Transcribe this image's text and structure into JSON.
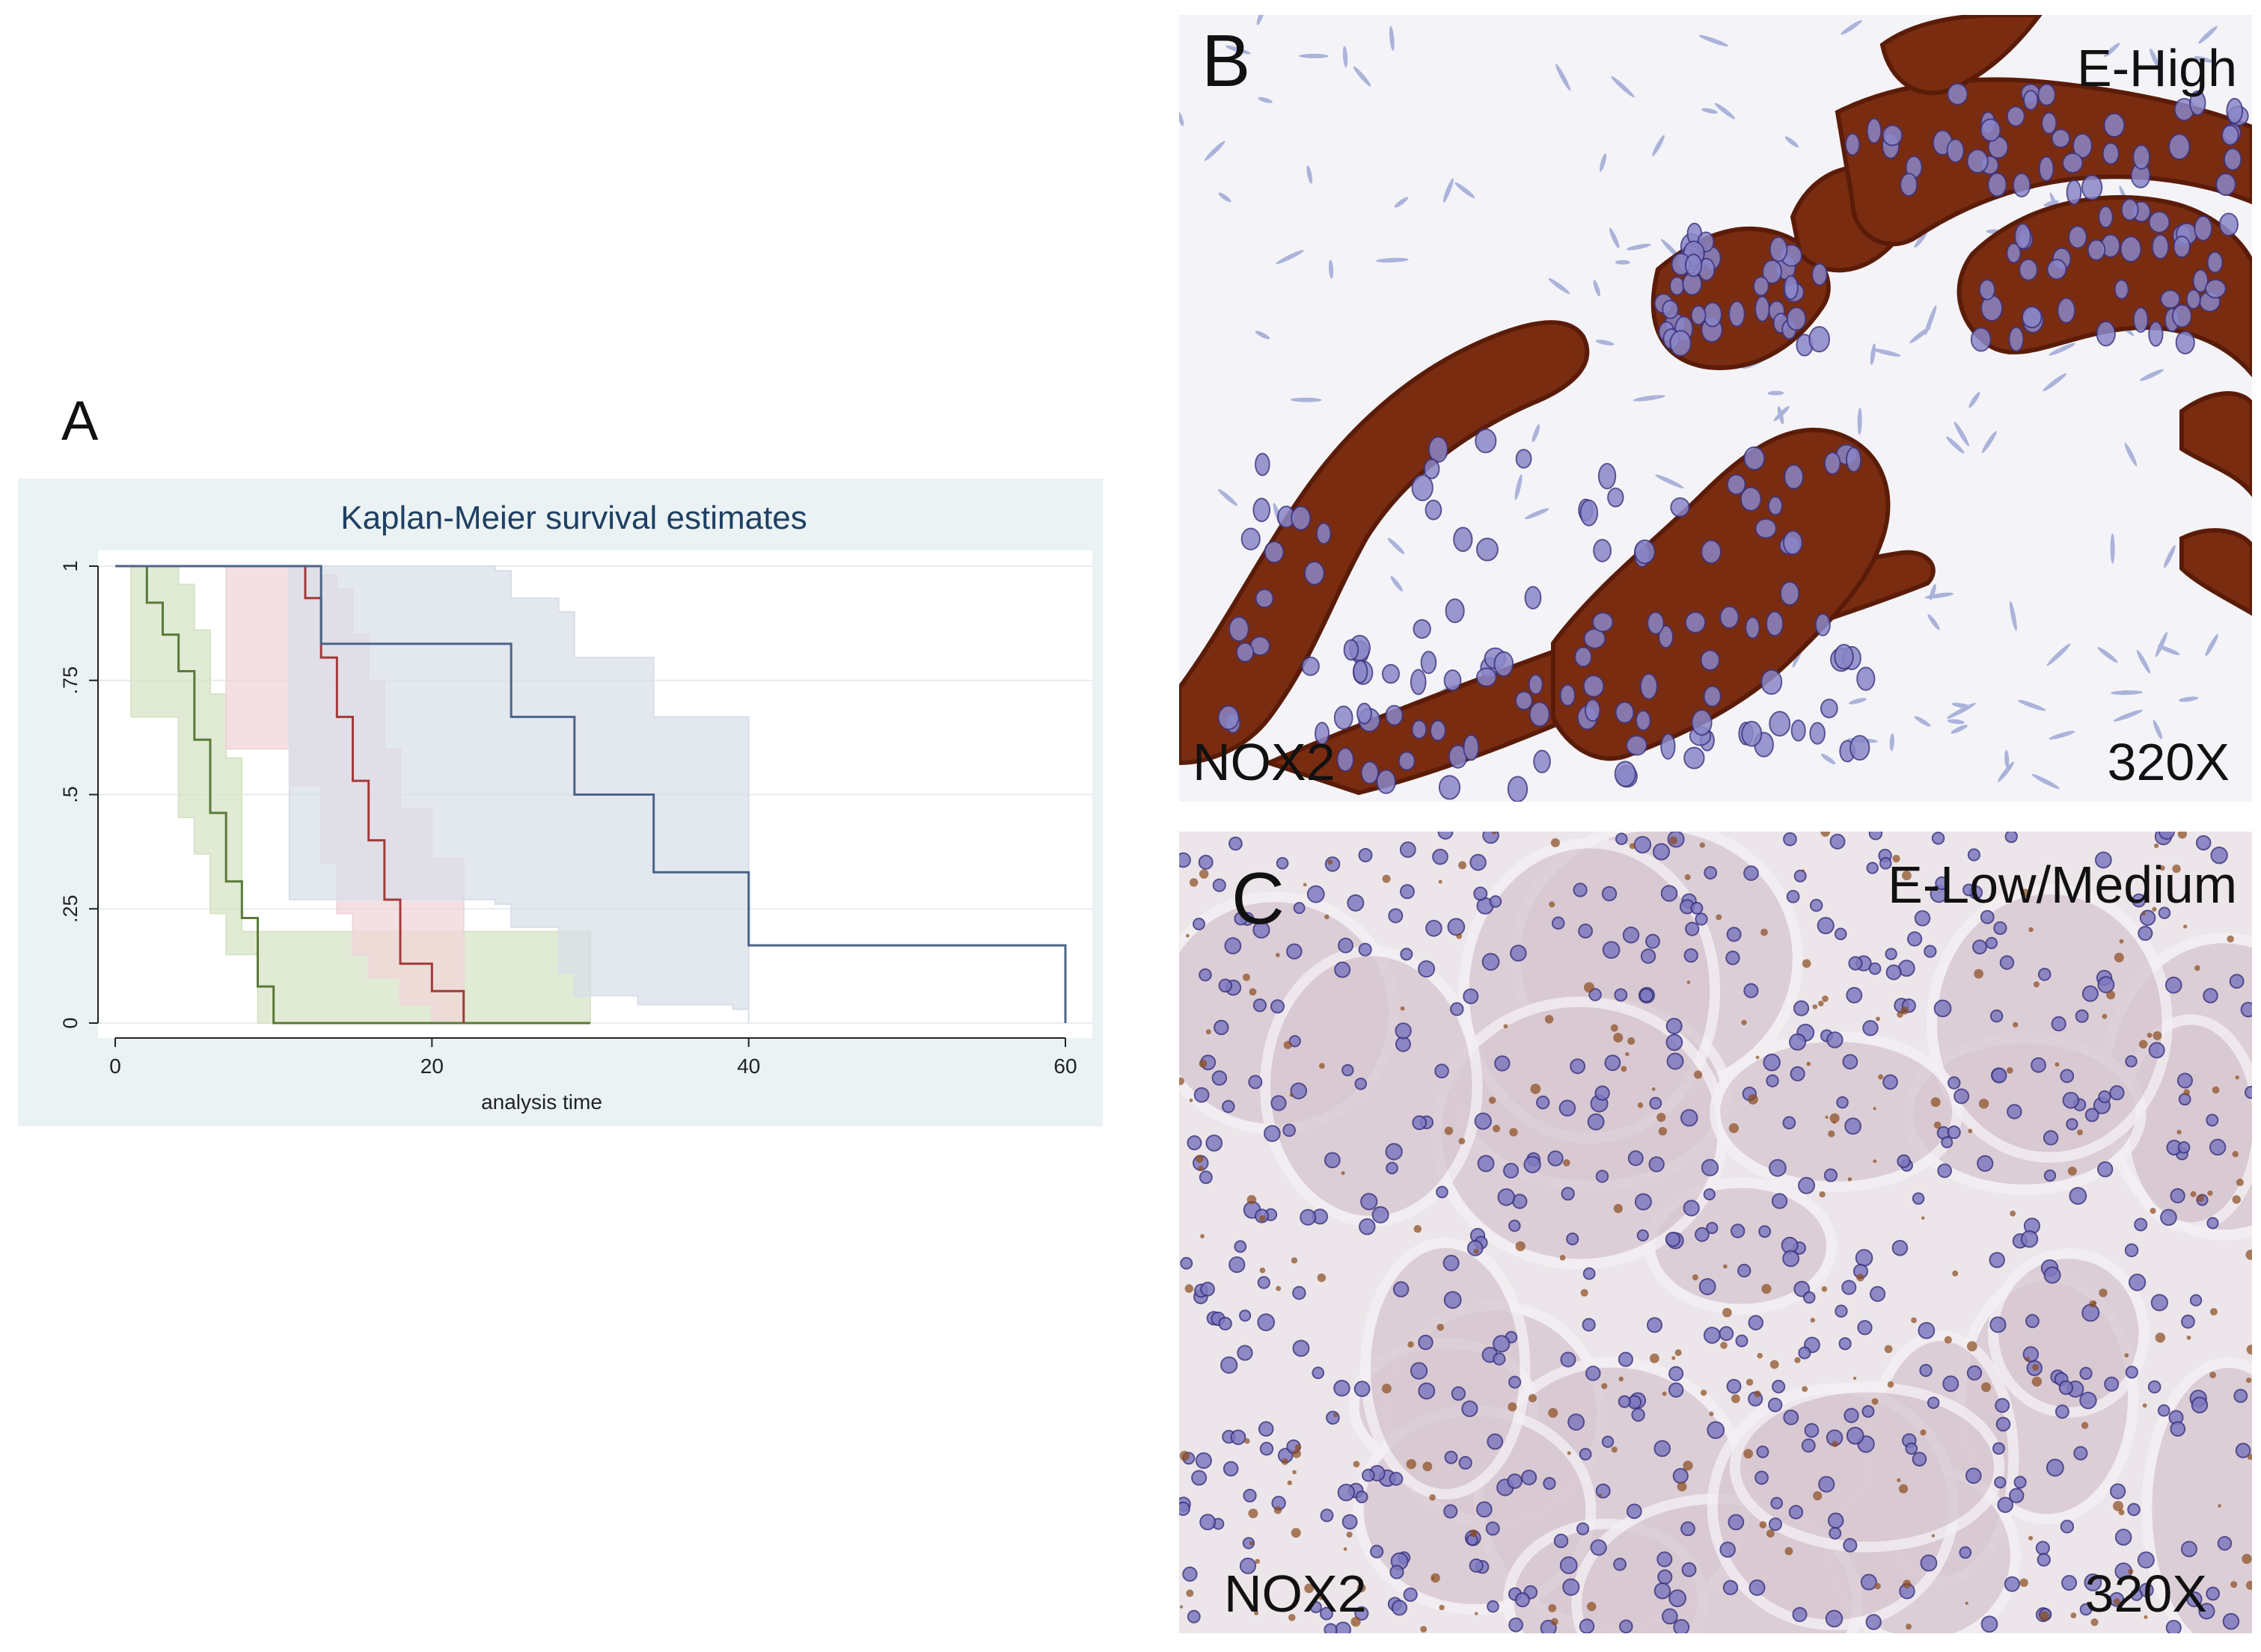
{
  "panels": {
    "a": {
      "letter": "A"
    },
    "b": {
      "letter": "B",
      "group": "E-High",
      "stain": "NOX2",
      "magnification": "320X"
    },
    "c": {
      "letter": "C",
      "group": "E-Low/Medium",
      "stain": "NOX2",
      "magnification": "320X"
    }
  },
  "chart_data": {
    "type": "line",
    "title": "Kaplan-Meier survival estimates",
    "xlabel": "analysis time",
    "ylabel": "",
    "xlim": [
      0,
      60
    ],
    "ylim": [
      0,
      1
    ],
    "xticks": [
      0,
      20,
      40,
      60
    ],
    "yticks": [
      0,
      0.25,
      0.5,
      0.75,
      1
    ],
    "ytick_labels": [
      "0",
      ".25",
      ".5",
      ".75",
      "1"
    ],
    "grid": true,
    "series": [
      {
        "color": "#5b7a3a",
        "ci_color": "#d7e3c6",
        "steps": [
          [
            0,
            1
          ],
          [
            1,
            1
          ],
          [
            2,
            0.92
          ],
          [
            3,
            0.85
          ],
          [
            4,
            0.77
          ],
          [
            5,
            0.62
          ],
          [
            6,
            0.46
          ],
          [
            7,
            0.31
          ],
          [
            8,
            0.23
          ],
          [
            9,
            0.08
          ],
          [
            10,
            0.0
          ],
          [
            30,
            0.0
          ]
        ],
        "ci_upper": [
          [
            0,
            1
          ],
          [
            1,
            1
          ],
          [
            2,
            1
          ],
          [
            3,
            1
          ],
          [
            4,
            0.96
          ],
          [
            5,
            0.86
          ],
          [
            6,
            0.72
          ],
          [
            7,
            0.58
          ],
          [
            8,
            0.2
          ],
          [
            30,
            0.2
          ]
        ],
        "ci_lower": [
          [
            0,
            1
          ],
          [
            1,
            0.67
          ],
          [
            4,
            0.45
          ],
          [
            5,
            0.37
          ],
          [
            6,
            0.24
          ],
          [
            7,
            0.15
          ],
          [
            9,
            0.0
          ],
          [
            30,
            0.0
          ]
        ]
      },
      {
        "color": "#a33a3a",
        "ci_color": "#f0d5d8",
        "steps": [
          [
            0,
            1
          ],
          [
            11,
            1
          ],
          [
            12,
            0.93
          ],
          [
            13,
            0.8
          ],
          [
            14,
            0.67
          ],
          [
            15,
            0.53
          ],
          [
            16,
            0.4
          ],
          [
            17,
            0.27
          ],
          [
            18,
            0.13
          ],
          [
            20,
            0.07
          ],
          [
            22,
            0.0
          ]
        ],
        "ci_upper": [
          [
            0,
            1
          ],
          [
            11,
            1
          ],
          [
            13,
            0.98
          ],
          [
            14,
            0.95
          ],
          [
            15,
            0.85
          ],
          [
            16,
            0.75
          ],
          [
            17,
            0.6
          ],
          [
            18,
            0.47
          ],
          [
            20,
            0.36
          ],
          [
            22,
            0.3
          ]
        ],
        "ci_lower": [
          [
            0,
            1
          ],
          [
            7,
            0.6
          ],
          [
            11,
            0.52
          ],
          [
            13,
            0.35
          ],
          [
            14,
            0.24
          ],
          [
            15,
            0.15
          ],
          [
            16,
            0.1
          ],
          [
            18,
            0.04
          ],
          [
            20,
            0.0
          ],
          [
            22,
            0.0
          ]
        ]
      },
      {
        "color": "#4a6488",
        "ci_color": "#d9dfe8",
        "steps": [
          [
            0,
            1
          ],
          [
            11,
            1
          ],
          [
            13,
            0.83
          ],
          [
            24,
            0.83
          ],
          [
            25,
            0.67
          ],
          [
            28,
            0.67
          ],
          [
            29,
            0.5
          ],
          [
            33,
            0.5
          ],
          [
            34,
            0.33
          ],
          [
            39,
            0.33
          ],
          [
            40,
            0.17
          ],
          [
            60,
            0.17
          ],
          [
            60,
            0.0
          ]
        ],
        "ci_upper": [
          [
            0,
            1
          ],
          [
            11,
            1
          ],
          [
            24,
            0.99
          ],
          [
            25,
            0.93
          ],
          [
            28,
            0.9
          ],
          [
            29,
            0.8
          ],
          [
            33,
            0.8
          ],
          [
            34,
            0.67
          ],
          [
            39,
            0.67
          ],
          [
            40,
            0.0
          ]
        ],
        "ci_lower": [
          [
            0,
            1
          ],
          [
            11,
            0.27
          ],
          [
            24,
            0.26
          ],
          [
            25,
            0.21
          ],
          [
            28,
            0.11
          ],
          [
            29,
            0.06
          ],
          [
            33,
            0.04
          ],
          [
            39,
            0.03
          ],
          [
            40,
            0.0
          ]
        ]
      }
    ]
  }
}
